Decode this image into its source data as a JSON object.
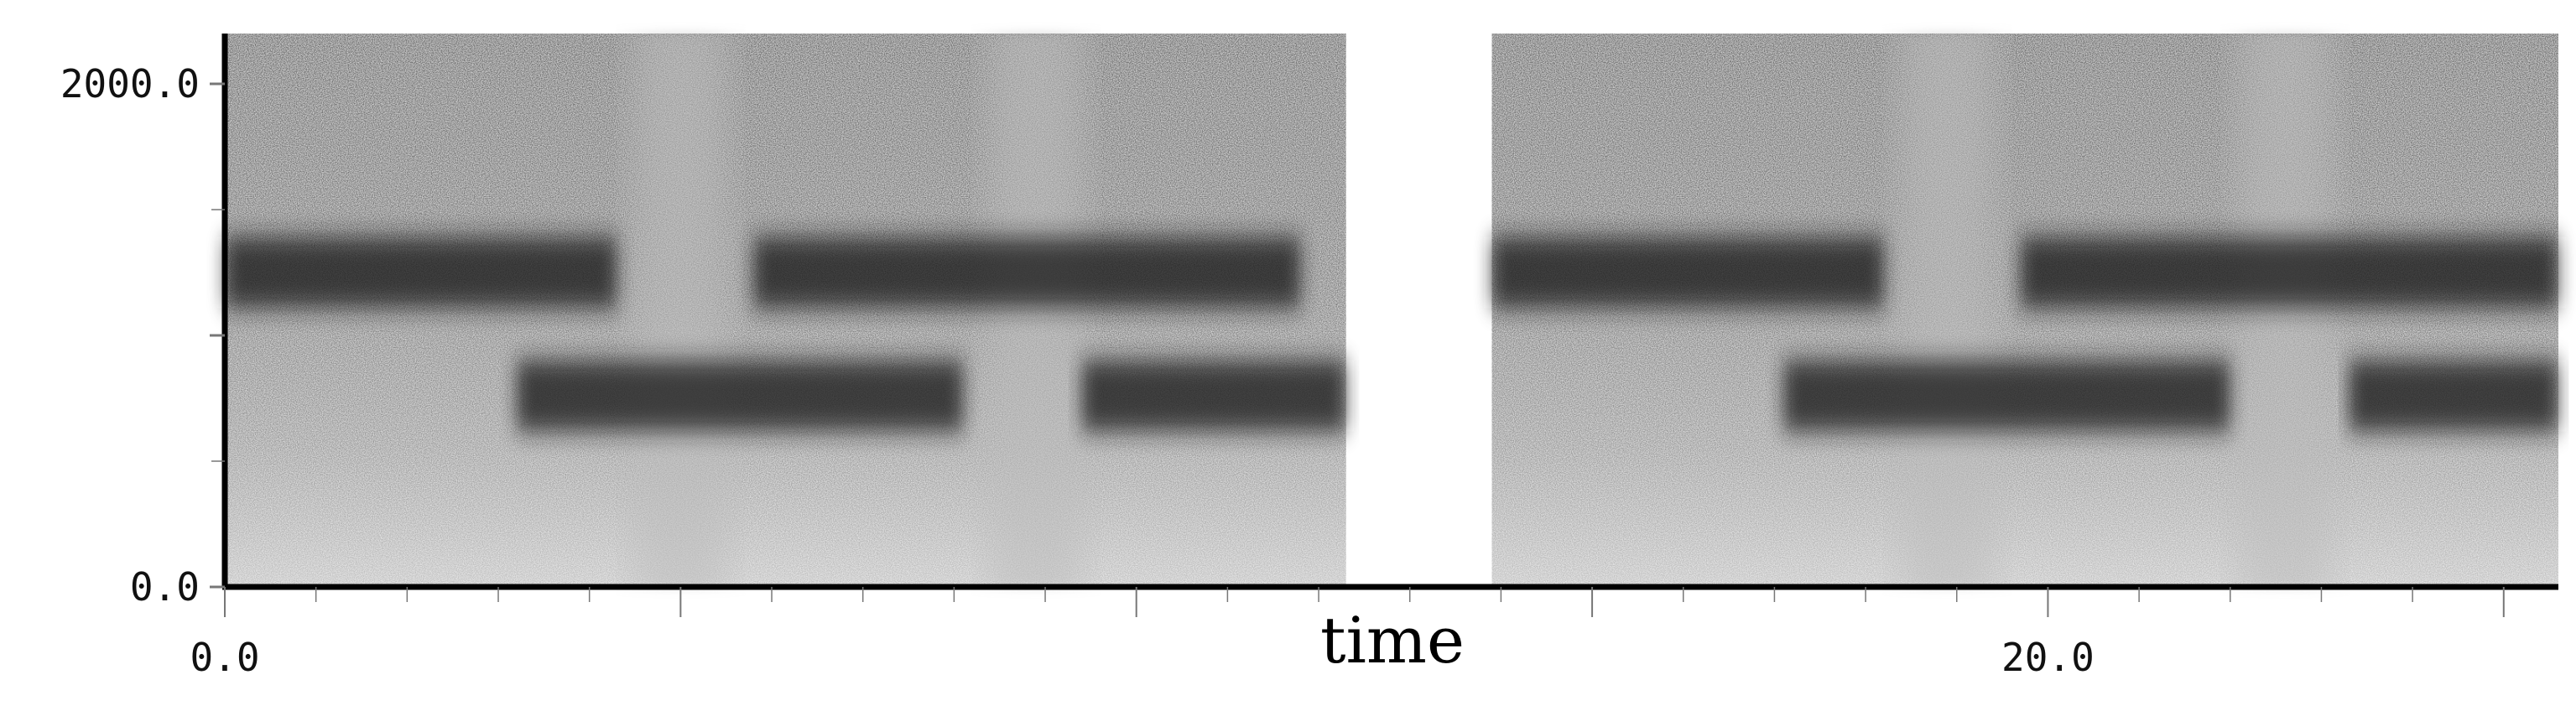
{
  "chart_data": {
    "type": "heatmap",
    "subtype": "spectrogram",
    "title": "",
    "xlabel": "time",
    "ylabel": "",
    "xlim": [
      0.0,
      25.6
    ],
    "ylim": [
      0.0,
      2200.0
    ],
    "x_tick_labels": [
      "0.0",
      "20.0"
    ],
    "y_tick_labels": [
      "0.0",
      "2000.0"
    ],
    "colormap": "grayscale (darker = higher energy)",
    "grid": false,
    "segments": [
      {
        "start": 0.0,
        "end": 12.3
      },
      {
        "start": 13.9,
        "end": 25.6
      }
    ],
    "bands": [
      {
        "start": 0.0,
        "end": 4.3,
        "freq": 1250
      },
      {
        "start": 5.8,
        "end": 11.8,
        "freq": 1250
      },
      {
        "start": 3.2,
        "end": 8.1,
        "freq": 760
      },
      {
        "start": 9.4,
        "end": 12.3,
        "freq": 760
      },
      {
        "start": 13.9,
        "end": 18.2,
        "freq": 1250
      },
      {
        "start": 19.7,
        "end": 25.6,
        "freq": 1250
      },
      {
        "start": 17.1,
        "end": 22.0,
        "freq": 760
      },
      {
        "start": 23.3,
        "end": 25.6,
        "freq": 760
      }
    ],
    "light_gaps": [
      {
        "center": 5.0
      },
      {
        "center": 8.9
      },
      {
        "center": 18.9
      },
      {
        "center": 22.6
      }
    ]
  }
}
